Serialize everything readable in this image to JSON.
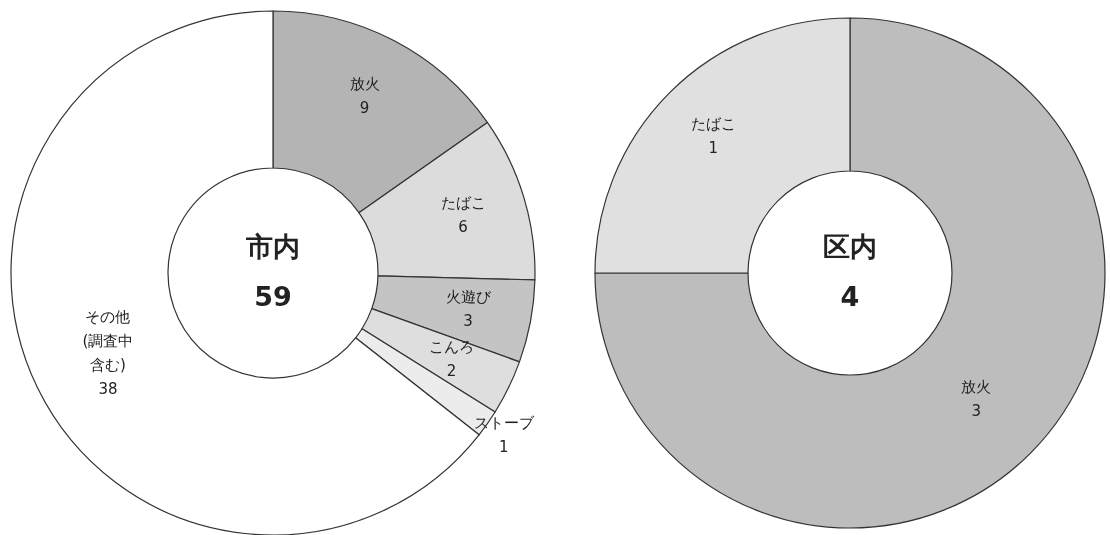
{
  "chart_data": [
    {
      "type": "donut",
      "title": "市内",
      "annotations": [
        "59"
      ],
      "categories": [
        "放火",
        "たばこ",
        "火遊び",
        "こんろ",
        "ストーブ",
        "その他(調査中含む)"
      ],
      "values": [
        9,
        6,
        3,
        2,
        1,
        38
      ],
      "colors": [
        "#b4b4b4",
        "#dcdcdc",
        "#c4c4c4",
        "#dedede",
        "#ececec",
        "#ffffff"
      ],
      "data_labels": true
    },
    {
      "type": "donut",
      "title": "区内",
      "annotations": [
        "4"
      ],
      "categories": [
        "放火",
        "たばこ"
      ],
      "values": [
        3,
        1
      ],
      "colors": [
        "#bdbdbd",
        "#e0e0e0"
      ],
      "data_labels": true
    }
  ]
}
